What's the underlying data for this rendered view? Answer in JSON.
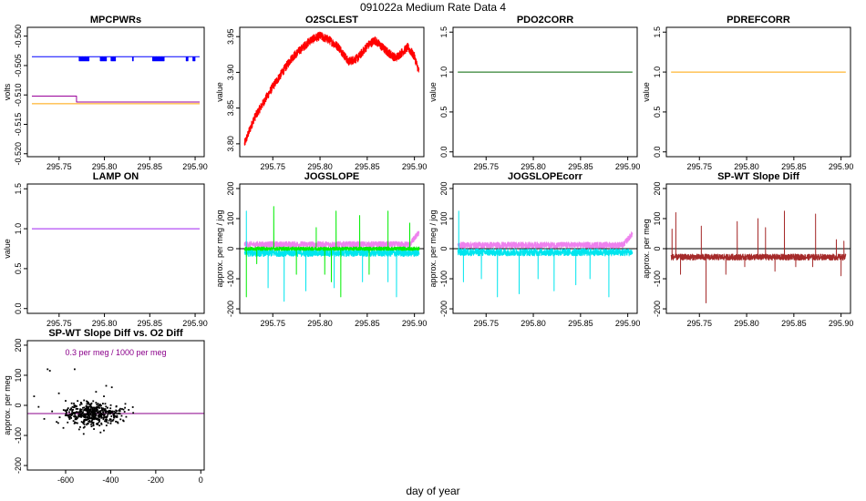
{
  "figure": {
    "title": "091022a   Medium Rate Data 4",
    "xlabel": "day of year"
  },
  "chart_data": [
    {
      "id": "mpcpwrs",
      "type": "line",
      "title": "MPCPWRs",
      "ylabel": "volts",
      "xlim": [
        295.715,
        295.91
      ],
      "ylim": [
        -0.5205,
        -0.4985
      ],
      "xticks": [
        295.75,
        295.8,
        295.85,
        295.9
      ],
      "xtick_labels": [
        "295.75",
        "295.80",
        "295.85",
        "295.90"
      ],
      "yticks": [
        -0.52,
        -0.515,
        -0.51,
        -0.505,
        -0.5
      ],
      "ytick_labels": [
        "-0.520",
        "-0.515",
        "-0.510",
        "-0.505",
        "-0.500"
      ],
      "series": [
        {
          "name": "blue",
          "color": "#0000ff",
          "kind": "step",
          "x_range": [
            295.72,
            295.905
          ],
          "base": -0.5035,
          "alt": -0.5042,
          "alt_intervals": [
            [
              295.772,
              295.783
            ],
            [
              295.795,
              295.802
            ],
            [
              295.807,
              295.812
            ],
            [
              295.83,
              295.832
            ],
            [
              295.853,
              295.866
            ],
            [
              295.89,
              295.892
            ],
            [
              295.897,
              295.9
            ]
          ]
        },
        {
          "name": "purple",
          "color": "#990099",
          "kind": "step",
          "x_range": [
            295.72,
            295.905
          ],
          "base": -0.5102,
          "alt": -0.5112,
          "alt_intervals": [
            [
              295.769,
              295.771
            ],
            [
              295.779,
              295.782
            ]
          ],
          "segments": [
            {
              "x0": 295.72,
              "x1": 295.769,
              "y": -0.5102
            },
            {
              "x0": 295.769,
              "x1": 295.905,
              "y": -0.5112
            }
          ]
        },
        {
          "name": "orange",
          "color": "#ffa500",
          "kind": "flat",
          "x_range": [
            295.72,
            295.905
          ],
          "y": -0.5115
        }
      ]
    },
    {
      "id": "o2sclest",
      "type": "line",
      "title": "O2SCLEST",
      "ylabel": "value",
      "xlim": [
        295.715,
        295.91
      ],
      "ylim": [
        3.782,
        3.963
      ],
      "xticks": [
        295.75,
        295.8,
        295.85,
        295.9
      ],
      "xtick_labels": [
        "295.75",
        "295.80",
        "295.85",
        "295.90"
      ],
      "yticks": [
        3.8,
        3.85,
        3.9,
        3.95
      ],
      "ytick_labels": [
        "3.80",
        "3.85",
        "3.90",
        "3.95"
      ],
      "series": [
        {
          "name": "o2",
          "color": "#ff0000",
          "kind": "noisy",
          "noise": 0.006,
          "x": [
            295.72,
            295.73,
            295.75,
            295.77,
            295.79,
            295.8,
            295.81,
            295.82,
            295.83,
            295.84,
            295.85,
            295.858,
            295.87,
            295.88,
            295.893,
            295.9,
            295.905
          ],
          "y": [
            3.8,
            3.835,
            3.88,
            3.92,
            3.945,
            3.951,
            3.945,
            3.935,
            3.915,
            3.92,
            3.937,
            3.945,
            3.93,
            3.92,
            3.935,
            3.922,
            3.9
          ]
        }
      ]
    },
    {
      "id": "pdo2corr",
      "type": "line",
      "title": "PDO2CORR",
      "ylabel": "value",
      "xlim": [
        295.715,
        295.91
      ],
      "ylim": [
        -0.06,
        1.56
      ],
      "xticks": [
        295.75,
        295.8,
        295.85,
        295.9
      ],
      "xtick_labels": [
        "295.75",
        "295.80",
        "295.85",
        "295.90"
      ],
      "yticks": [
        0.0,
        0.5,
        1.0,
        1.5
      ],
      "ytick_labels": [
        "0.0",
        "0.5",
        "1.0",
        "1.5"
      ],
      "series": [
        {
          "name": "pdo2corr",
          "color": "#006400",
          "kind": "flat",
          "x_range": [
            295.72,
            295.905
          ],
          "y": 1.0
        }
      ]
    },
    {
      "id": "pdrefcorr",
      "type": "line",
      "title": "PDREFCORR",
      "ylabel": "value",
      "xlim": [
        295.715,
        295.91
      ],
      "ylim": [
        -0.06,
        1.56
      ],
      "xticks": [
        295.75,
        295.8,
        295.85,
        295.9
      ],
      "xtick_labels": [
        "295.75",
        "295.80",
        "295.85",
        "295.90"
      ],
      "yticks": [
        0.0,
        0.5,
        1.0,
        1.5
      ],
      "ytick_labels": [
        "0.0",
        "0.5",
        "1.0",
        "1.5"
      ],
      "series": [
        {
          "name": "pdrefcorr",
          "color": "#ffa500",
          "kind": "flat",
          "x_range": [
            295.72,
            295.905
          ],
          "y": 1.0
        }
      ]
    },
    {
      "id": "lampon",
      "type": "line",
      "title": "LAMP ON",
      "ylabel": "value",
      "xlim": [
        295.715,
        295.91
      ],
      "ylim": [
        -0.06,
        1.56
      ],
      "xticks": [
        295.75,
        295.8,
        295.85,
        295.9
      ],
      "xtick_labels": [
        "295.75",
        "295.80",
        "295.85",
        "295.90"
      ],
      "yticks": [
        0.0,
        0.5,
        1.0,
        1.5
      ],
      "ytick_labels": [
        "0.0",
        "0.5",
        "1.0",
        "1.5"
      ],
      "series": [
        {
          "name": "lampon",
          "color": "#a020f0",
          "kind": "flat",
          "x_range": [
            295.72,
            295.905
          ],
          "y": 1.0
        }
      ]
    },
    {
      "id": "jogslope",
      "type": "line",
      "title": "JOGSLOPE",
      "ylabel": "approx. per meg / jog",
      "xlim": [
        295.715,
        295.91
      ],
      "ylim": [
        -215,
        215
      ],
      "xticks": [
        295.75,
        295.8,
        295.85,
        295.9
      ],
      "xtick_labels": [
        "295.75",
        "295.80",
        "295.85",
        "295.90"
      ],
      "yticks": [
        -200,
        -100,
        0,
        100,
        200
      ],
      "ytick_labels": [
        "-200",
        "-100",
        "0",
        "100",
        "200"
      ],
      "hline": 0,
      "series": [
        {
          "name": "magenta",
          "color": "#ee82ee",
          "kind": "band",
          "x_range": [
            295.72,
            295.905
          ],
          "center": 14,
          "noise": 10,
          "end_rise": {
            "start": 295.895,
            "to": 55
          }
        },
        {
          "name": "cyan",
          "color": "#00e5ee",
          "kind": "band",
          "x_range": [
            295.72,
            295.905
          ],
          "center": -14,
          "noise": 12,
          "spikes": [
            {
              "x": 295.722,
              "y": 125
            },
            {
              "x": 295.745,
              "y": -130
            },
            {
              "x": 295.762,
              "y": -175
            },
            {
              "x": 295.785,
              "y": -140
            },
            {
              "x": 295.815,
              "y": -130
            },
            {
              "x": 295.845,
              "y": -110
            },
            {
              "x": 295.872,
              "y": -110
            },
            {
              "x": 295.881,
              "y": -160
            }
          ]
        },
        {
          "name": "green",
          "color": "#00ee00",
          "kind": "band",
          "x_range": [
            295.72,
            295.905
          ],
          "center": 0,
          "noise": 6,
          "spikes": [
            {
              "x": 295.722,
              "y": -160
            },
            {
              "x": 295.733,
              "y": -50
            },
            {
              "x": 295.751,
              "y": 140
            },
            {
              "x": 295.775,
              "y": -85
            },
            {
              "x": 295.796,
              "y": 70
            },
            {
              "x": 295.805,
              "y": -85
            },
            {
              "x": 295.812,
              "y": -110
            },
            {
              "x": 295.817,
              "y": 125
            },
            {
              "x": 295.822,
              "y": -160
            },
            {
              "x": 295.842,
              "y": 110
            },
            {
              "x": 295.852,
              "y": -85
            },
            {
              "x": 295.872,
              "y": 125
            },
            {
              "x": 295.895,
              "y": 85
            }
          ]
        }
      ]
    },
    {
      "id": "jogslopecorr",
      "type": "line",
      "title": "JOGSLOPEcorr",
      "ylabel": "approx. per meg / jog",
      "xlim": [
        295.715,
        295.91
      ],
      "ylim": [
        -215,
        215
      ],
      "xticks": [
        295.75,
        295.8,
        295.85,
        295.9
      ],
      "xtick_labels": [
        "295.75",
        "295.80",
        "295.85",
        "295.90"
      ],
      "yticks": [
        -200,
        -100,
        0,
        100,
        200
      ],
      "ytick_labels": [
        "-200",
        "-100",
        "0",
        "100",
        "200"
      ],
      "hline": 0,
      "series": [
        {
          "name": "magenta",
          "color": "#ee82ee",
          "kind": "band",
          "x_range": [
            295.72,
            295.905
          ],
          "center": 12,
          "noise": 10,
          "end_rise": {
            "start": 295.895,
            "to": 50
          }
        },
        {
          "name": "cyan",
          "color": "#00e5ee",
          "kind": "band",
          "x_range": [
            295.72,
            295.905
          ],
          "center": -12,
          "noise": 12,
          "spikes": [
            {
              "x": 295.721,
              "y": 125
            },
            {
              "x": 295.726,
              "y": -110
            },
            {
              "x": 295.745,
              "y": -100
            },
            {
              "x": 295.762,
              "y": -160
            },
            {
              "x": 295.785,
              "y": -150
            },
            {
              "x": 295.805,
              "y": -100
            },
            {
              "x": 295.822,
              "y": -140
            },
            {
              "x": 295.845,
              "y": -120
            },
            {
              "x": 295.86,
              "y": -100
            },
            {
              "x": 295.88,
              "y": -160
            }
          ]
        }
      ]
    },
    {
      "id": "spwtslope",
      "type": "line",
      "title": "SP-WT Slope Diff",
      "ylabel": "approx. per meg",
      "xlim": [
        295.715,
        295.91
      ],
      "ylim": [
        -215,
        215
      ],
      "xticks": [
        295.75,
        295.8,
        295.85,
        295.9
      ],
      "xtick_labels": [
        "295.75",
        "295.80",
        "295.85",
        "295.90"
      ],
      "yticks": [
        -200,
        -100,
        0,
        100,
        200
      ],
      "ytick_labels": [
        "-200",
        "-100",
        "0",
        "100",
        "200"
      ],
      "hline": 0,
      "series": [
        {
          "name": "brown",
          "color": "#a52a2a",
          "kind": "band",
          "x_range": [
            295.72,
            295.905
          ],
          "center": -28,
          "noise": 10,
          "spikes": [
            {
              "x": 295.721,
              "y": 65
            },
            {
              "x": 295.725,
              "y": 120
            },
            {
              "x": 295.73,
              "y": -85
            },
            {
              "x": 295.752,
              "y": 75
            },
            {
              "x": 295.757,
              "y": -180
            },
            {
              "x": 295.778,
              "y": -85
            },
            {
              "x": 295.79,
              "y": 90
            },
            {
              "x": 295.798,
              "y": -60
            },
            {
              "x": 295.812,
              "y": 100
            },
            {
              "x": 295.82,
              "y": 70
            },
            {
              "x": 295.83,
              "y": -75
            },
            {
              "x": 295.84,
              "y": 125
            },
            {
              "x": 295.852,
              "y": -60
            },
            {
              "x": 295.87,
              "y": -60
            },
            {
              "x": 295.873,
              "y": 115
            },
            {
              "x": 295.895,
              "y": 30
            },
            {
              "x": 295.9,
              "y": -90
            },
            {
              "x": 295.903,
              "y": 25
            }
          ]
        }
      ]
    },
    {
      "id": "spwtvso2",
      "type": "scatter",
      "title": "SP-WT Slope Diff vs. O2 Diff",
      "ylabel": "approx. per meg",
      "xlim": [
        -770,
        15
      ],
      "ylim": [
        -215,
        215
      ],
      "xticks": [
        -600,
        -400,
        -200,
        0
      ],
      "xtick_labels": [
        "-600",
        "-400",
        "-200",
        "0"
      ],
      "yticks": [
        -200,
        -100,
        0,
        100,
        200
      ],
      "ytick_labels": [
        "-200",
        "-100",
        "0",
        "100",
        "200"
      ],
      "annotation": "0.3 per meg / 1000 per meg",
      "fit_line": {
        "color": "#8b008b",
        "slope": 0.0003,
        "intercept": -27
      },
      "points_color": "#000000",
      "clusters": [
        {
          "cx": -480,
          "cy": -28,
          "sx": 45,
          "sy": 18,
          "n": 380
        },
        {
          "cx": -580,
          "cy": -30,
          "sx": 18,
          "sy": 12,
          "n": 45
        },
        {
          "cx": -370,
          "cy": -25,
          "sx": 18,
          "sy": 15,
          "n": 40
        }
      ],
      "outliers": [
        [
          -680,
          120
        ],
        [
          -670,
          115
        ],
        [
          -560,
          120
        ],
        [
          -420,
          65
        ],
        [
          -395,
          60
        ],
        [
          -740,
          30
        ],
        [
          -720,
          -5
        ],
        [
          -695,
          -45
        ],
        [
          -640,
          -55
        ],
        [
          -660,
          -20
        ],
        [
          -610,
          -75
        ],
        [
          -600,
          15
        ],
        [
          -540,
          -80
        ],
        [
          -520,
          -95
        ],
        [
          -500,
          5
        ],
        [
          -465,
          45
        ],
        [
          -430,
          30
        ],
        [
          -400,
          -60
        ],
        [
          -345,
          -50
        ],
        [
          -320,
          -15
        ],
        [
          -300,
          -25
        ],
        [
          -335,
          5
        ],
        [
          -445,
          -90
        ],
        [
          -485,
          -70
        ],
        [
          -630,
          40
        ]
      ]
    }
  ]
}
